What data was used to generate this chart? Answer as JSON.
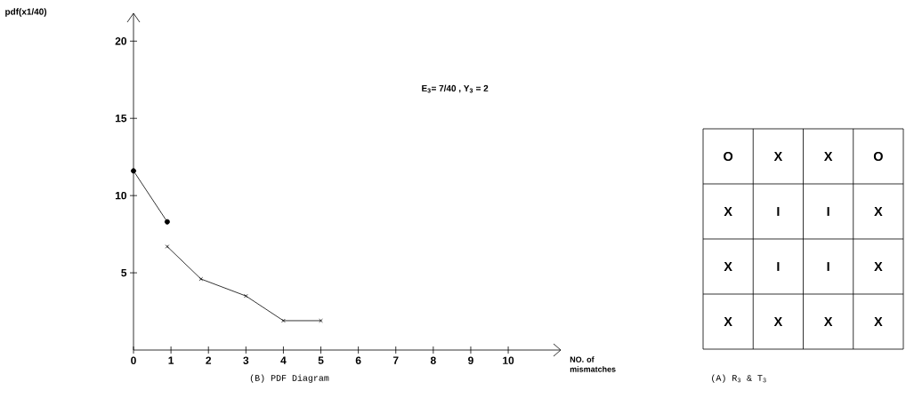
{
  "chart_data": [
    {
      "type": "line",
      "title": "(B) PDF Diagram",
      "xlabel": "NO. of mismatches",
      "ylabel": "pdf(x1/40)",
      "series": [
        {
          "color": "#000000",
          "marker": "circle",
          "x": [
            0,
            0.9
          ],
          "values": [
            11.6,
            8.3
          ]
        },
        {
          "color": "#000000",
          "marker": "cross",
          "x": [
            0.9,
            1.8,
            3,
            4,
            5
          ],
          "values": [
            6.7,
            4.6,
            3.5,
            1.9,
            1.9
          ]
        }
      ],
      "xlim": [
        0,
        11.4
      ],
      "ylim": [
        0,
        21.8
      ],
      "xticks": [
        0,
        1,
        2,
        3,
        4,
        5,
        6,
        7,
        8,
        9,
        10
      ],
      "yticks": [
        5,
        10,
        15,
        20
      ],
      "annotations": [
        "E$_{3}$= 7/40 , Y$_{3}$ = 2"
      ]
    },
    {
      "type": "other",
      "title": "(A) R$_{3}$ & T$_{3}$",
      "annotations": [
        "O",
        "X",
        "X",
        "O",
        "X",
        "I",
        "I",
        "X",
        "X",
        "I",
        "I",
        "X",
        "X",
        "X",
        "X",
        "X"
      ]
    }
  ]
}
